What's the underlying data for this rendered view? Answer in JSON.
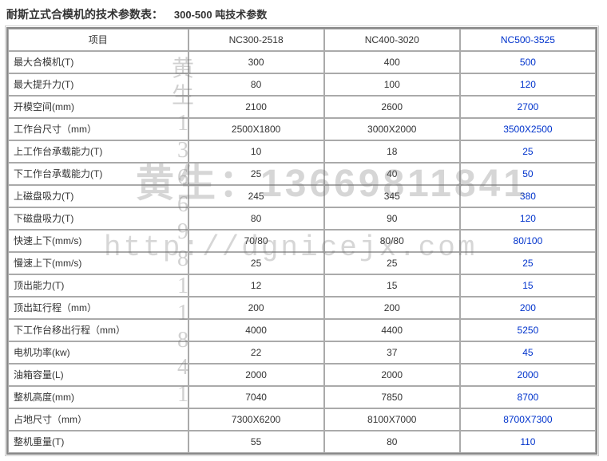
{
  "title_main": "耐斯立式合模机的技术参数表：",
  "title_sub": "300-500 吨技术参数",
  "header": {
    "col0": "项目",
    "col1": "NC300-2518",
    "col2": "NC400-3020",
    "col3": "NC500-3525"
  },
  "rows": [
    {
      "label": "最大合模机(T)",
      "c1": "300",
      "c2": "400",
      "c3": "500"
    },
    {
      "label": "最大提升力(T)",
      "c1": "80",
      "c2": "100",
      "c3": "120"
    },
    {
      "label": "开模空间(mm)",
      "c1": "2100",
      "c2": "2600",
      "c3": "2700"
    },
    {
      "label": "工作台尺寸（mm）",
      "c1": "2500X1800",
      "c2": "3000X2000",
      "c3": "3500X2500"
    },
    {
      "label": "上工作台承载能力(T)",
      "c1": "10",
      "c2": "18",
      "c3": "25"
    },
    {
      "label": "下工作台承载能力(T)",
      "c1": "25",
      "c2": "40",
      "c3": "50"
    },
    {
      "label": "上磁盘吸力(T)",
      "c1": "245",
      "c2": "345",
      "c3": "380"
    },
    {
      "label": "下磁盘吸力(T)",
      "c1": "80",
      "c2": "90",
      "c3": "120"
    },
    {
      "label": "快速上下(mm/s)",
      "c1": "70/80",
      "c2": "80/80",
      "c3": "80/100"
    },
    {
      "label": "慢速上下(mm/s)",
      "c1": "25",
      "c2": "25",
      "c3": "25"
    },
    {
      "label": "顶出能力(T)",
      "c1": "12",
      "c2": "15",
      "c3": "15"
    },
    {
      "label": "顶出缸行程（mm）",
      "c1": "200",
      "c2": "200",
      "c3": "200"
    },
    {
      "label": "下工作台移出行程（mm）",
      "c1": "4000",
      "c2": "4400",
      "c3": "5250"
    },
    {
      "label": "电机功率(kw)",
      "c1": "22",
      "c2": "37",
      "c3": "45"
    },
    {
      "label": "油箱容量(L)",
      "c1": "2000",
      "c2": "2000",
      "c3": "2000"
    },
    {
      "label": "整机高度(mm)",
      "c1": "7040",
      "c2": "7850",
      "c3": "8700"
    },
    {
      "label": "占地尺寸（mm）",
      "c1": "7300X6200",
      "c2": "8100X7000",
      "c3": "8700X7300"
    },
    {
      "label": "整机重量(T)",
      "c1": "55",
      "c2": "80",
      "c3": "110"
    }
  ],
  "watermark": {
    "vertical": "黄\n生\n1\n3\n6\n6\n9\n8\n1\n1\n8\n4\n1",
    "phone": "黄生：13669811841",
    "url": "http://dgnicejx.com"
  },
  "colors": {
    "highlight": "#0033cc",
    "border": "#aaaaaa",
    "outer_border": "#888888",
    "text": "#333333",
    "watermark": "rgba(120,120,120,0.35)"
  },
  "font_sizes": {
    "title": 14,
    "cell": 12,
    "wm_vert": 28,
    "wm_phone": 48,
    "wm_url": 36
  }
}
